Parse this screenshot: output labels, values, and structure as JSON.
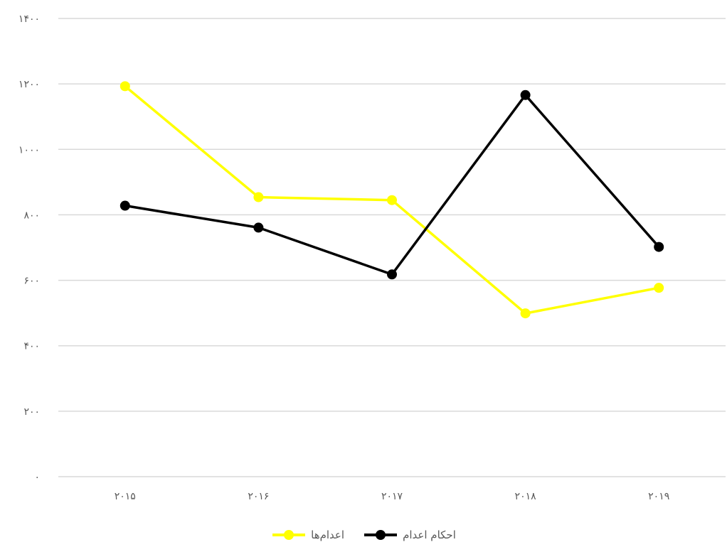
{
  "chart_data": {
    "type": "line",
    "categories": [
      "۲۰۱۵",
      "۲۰۱۶",
      "۲۰۱۷",
      "۲۰۱۸",
      "۲۰۱۹"
    ],
    "ylim": [
      0,
      1400
    ],
    "yticks": [
      0,
      200,
      400,
      600,
      800,
      1000,
      1200,
      1400
    ],
    "ytick_labels": [
      "۰",
      "۲۰۰",
      "۴۰۰",
      "۶۰۰",
      "۸۰۰",
      "۱۰۰۰",
      "۱۲۰۰",
      "۱۴۰۰"
    ],
    "grid": true,
    "legend_position": "bottom",
    "series": [
      {
        "name": "اعدام‌ها",
        "color": "#ffff00",
        "values": [
          1193,
          854,
          845,
          499,
          577
        ]
      },
      {
        "name": "احکام اعدام",
        "color": "#000000",
        "values": [
          828,
          761,
          618,
          1166,
          702
        ]
      }
    ]
  }
}
